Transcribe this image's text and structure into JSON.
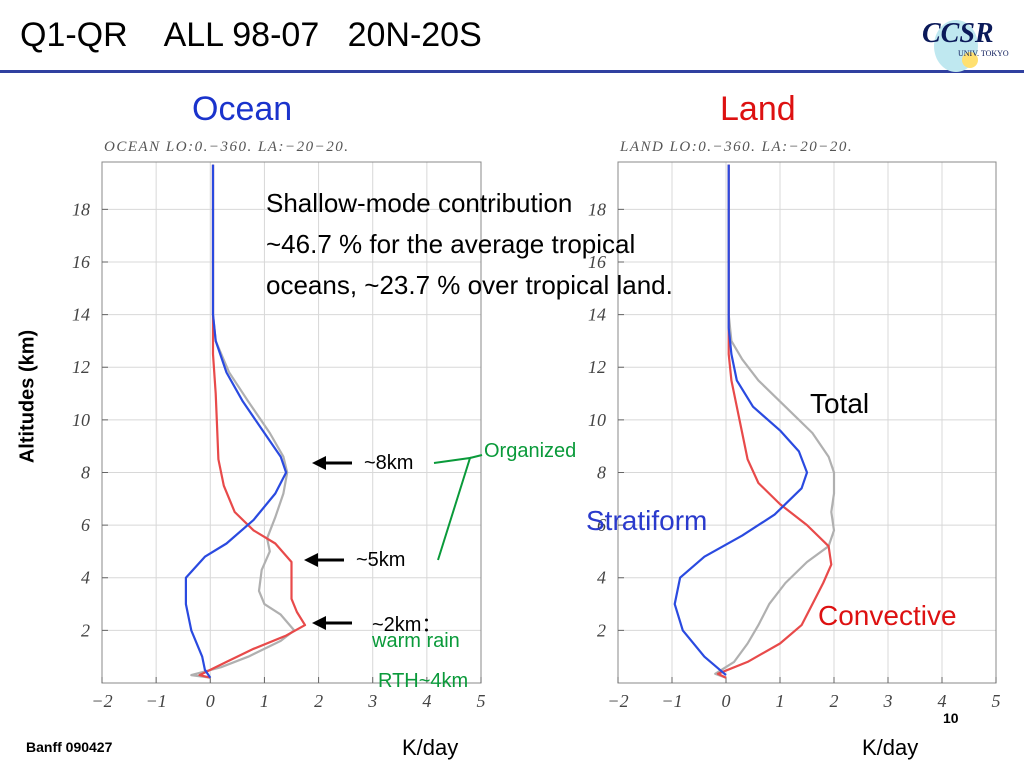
{
  "slide": {
    "title": "Q1-QR    ALL 98-07   20N-20S",
    "footer": "Banff 090427",
    "page_number": "10",
    "logo_text": "CCSR",
    "logo_subtext": "UNIV. TOKYO"
  },
  "panels": {
    "ocean_heading": "Ocean",
    "land_heading": "Land",
    "ocean_header_text": "OCEAN  LO:0.−360.  LA:−20−20.",
    "land_header_text": "LAND   LO:0.−360.  LA:−20−20.",
    "ylabel": "Altitudes (km)",
    "xunit": "K/day"
  },
  "annotations": {
    "shallow_line1": "Shallow-mode contribution",
    "shallow_line2": "~46.7 % for the average tropical",
    "shallow_line3": "oceans, ~23.7 % over tropical land.",
    "peak_8km": "~8km",
    "peak_5km": "~5km",
    "peak_2km": "~2km：",
    "warm_rain": "warm rain",
    "rth": "RTH~4km",
    "organized": "Organized",
    "total": "Total",
    "stratiform": "Stratiform",
    "convective": "Convective"
  },
  "colors": {
    "stratiform": "#2a4ae0",
    "convective": "#e84a4a",
    "total": "#b0b0b0",
    "organized": "#0a9a3a",
    "title_rule": "#3040a0"
  },
  "chart_data": [
    {
      "type": "line",
      "panel": "Ocean",
      "xlim": [
        -2,
        5
      ],
      "ylim": [
        0,
        19.8
      ],
      "xticks": [
        -2,
        -1,
        0,
        1,
        2,
        3,
        4,
        5
      ],
      "yticks": [
        2,
        4,
        6,
        8,
        10,
        12,
        14,
        16,
        18
      ],
      "xlabel": "K/day",
      "ylabel": "Altitudes (km)",
      "grid": true,
      "series": [
        {
          "name": "Stratiform",
          "color": "#2a4ae0",
          "points": [
            [
              0.0,
              0.2
            ],
            [
              -0.1,
              0.5
            ],
            [
              -0.15,
              1
            ],
            [
              -0.35,
              2
            ],
            [
              -0.45,
              3
            ],
            [
              -0.45,
              4
            ],
            [
              -0.1,
              4.8
            ],
            [
              0.3,
              5.3
            ],
            [
              0.8,
              6.2
            ],
            [
              1.2,
              7.2
            ],
            [
              1.4,
              8
            ],
            [
              1.3,
              8.6
            ],
            [
              1.0,
              9.5
            ],
            [
              0.6,
              10.7
            ],
            [
              0.3,
              11.8
            ],
            [
              0.1,
              13
            ],
            [
              0.05,
              14
            ],
            [
              0.05,
              15
            ],
            [
              0.05,
              16
            ],
            [
              0.05,
              17
            ],
            [
              0.05,
              18
            ],
            [
              0.05,
              19.7
            ]
          ]
        },
        {
          "name": "Convective",
          "color": "#e84a4a",
          "points": [
            [
              0.0,
              0.2
            ],
            [
              -0.2,
              0.3
            ],
            [
              0.3,
              0.8
            ],
            [
              0.8,
              1.3
            ],
            [
              1.4,
              1.8
            ],
            [
              1.75,
              2.2
            ],
            [
              1.6,
              2.7
            ],
            [
              1.5,
              3.2
            ],
            [
              1.5,
              4.0
            ],
            [
              1.5,
              4.6
            ],
            [
              1.2,
              5.3
            ],
            [
              0.8,
              5.8
            ],
            [
              0.45,
              6.5
            ],
            [
              0.25,
              7.5
            ],
            [
              0.15,
              8.5
            ],
            [
              0.12,
              10
            ],
            [
              0.1,
              11
            ],
            [
              0.05,
              12.5
            ],
            [
              0.05,
              14
            ],
            [
              0.05,
              15
            ],
            [
              0.05,
              16
            ],
            [
              0.05,
              16.5
            ],
            [
              0.05,
              19.7
            ]
          ]
        },
        {
          "name": "Total",
          "color": "#b0b0b0",
          "points": [
            [
              0.0,
              0.2
            ],
            [
              -0.35,
              0.3
            ],
            [
              0.2,
              0.6
            ],
            [
              0.7,
              1.0
            ],
            [
              1.3,
              1.6
            ],
            [
              1.55,
              2.0
            ],
            [
              1.3,
              2.6
            ],
            [
              1.0,
              3.0
            ],
            [
              0.9,
              3.5
            ],
            [
              0.95,
              4.3
            ],
            [
              1.1,
              5.0
            ],
            [
              1.05,
              5.5
            ],
            [
              1.2,
              6.3
            ],
            [
              1.35,
              7.2
            ],
            [
              1.42,
              8
            ],
            [
              1.35,
              8.6
            ],
            [
              1.1,
              9.5
            ],
            [
              0.7,
              10.7
            ],
            [
              0.35,
              11.8
            ],
            [
              0.1,
              13
            ],
            [
              0.05,
              14
            ],
            [
              0.05,
              15
            ],
            [
              0.05,
              16
            ],
            [
              0.05,
              17
            ],
            [
              0.05,
              18
            ],
            [
              0.05,
              19.7
            ]
          ]
        }
      ]
    },
    {
      "type": "line",
      "panel": "Land",
      "xlim": [
        -2,
        5
      ],
      "ylim": [
        0,
        19.8
      ],
      "xticks": [
        -2,
        -1,
        0,
        1,
        2,
        3,
        4,
        5
      ],
      "yticks": [
        2,
        4,
        6,
        8,
        10,
        12,
        14,
        16,
        18
      ],
      "xlabel": "K/day",
      "ylabel": "Altitudes (km)",
      "grid": true,
      "series": [
        {
          "name": "Stratiform",
          "color": "#2a4ae0",
          "points": [
            [
              0.0,
              0.3
            ],
            [
              -0.4,
              1.0
            ],
            [
              -0.8,
              2.0
            ],
            [
              -0.95,
              3.0
            ],
            [
              -0.85,
              4.0
            ],
            [
              -0.4,
              4.8
            ],
            [
              0.3,
              5.6
            ],
            [
              0.9,
              6.4
            ],
            [
              1.4,
              7.4
            ],
            [
              1.5,
              8
            ],
            [
              1.35,
              8.8
            ],
            [
              1.0,
              9.6
            ],
            [
              0.5,
              10.5
            ],
            [
              0.2,
              11.5
            ],
            [
              0.1,
              12.5
            ],
            [
              0.05,
              13.5
            ],
            [
              0.05,
              15
            ],
            [
              0.05,
              16
            ],
            [
              0.05,
              18
            ],
            [
              0.05,
              19.7
            ]
          ]
        },
        {
          "name": "Convective",
          "color": "#e84a4a",
          "points": [
            [
              0.0,
              0.2
            ],
            [
              -0.15,
              0.35
            ],
            [
              0.4,
              0.8
            ],
            [
              1.0,
              1.5
            ],
            [
              1.4,
              2.2
            ],
            [
              1.6,
              3.0
            ],
            [
              1.8,
              3.8
            ],
            [
              1.95,
              4.5
            ],
            [
              1.9,
              5.2
            ],
            [
              1.5,
              6.0
            ],
            [
              1.0,
              6.8
            ],
            [
              0.6,
              7.6
            ],
            [
              0.4,
              8.5
            ],
            [
              0.3,
              9.5
            ],
            [
              0.2,
              10.5
            ],
            [
              0.1,
              11.5
            ],
            [
              0.05,
              12.5
            ],
            [
              0.05,
              14
            ],
            [
              0.05,
              15
            ],
            [
              0.05,
              16
            ],
            [
              0.05,
              19.7
            ]
          ]
        },
        {
          "name": "Total",
          "color": "#b0b0b0",
          "points": [
            [
              0.0,
              0.2
            ],
            [
              -0.2,
              0.35
            ],
            [
              0.15,
              0.8
            ],
            [
              0.4,
              1.5
            ],
            [
              0.6,
              2.2
            ],
            [
              0.8,
              3.0
            ],
            [
              1.1,
              3.8
            ],
            [
              1.5,
              4.6
            ],
            [
              1.9,
              5.2
            ],
            [
              2.0,
              5.8
            ],
            [
              1.95,
              6.5
            ],
            [
              2.0,
              7.2
            ],
            [
              2.0,
              8
            ],
            [
              1.9,
              8.6
            ],
            [
              1.6,
              9.5
            ],
            [
              1.1,
              10.5
            ],
            [
              0.6,
              11.5
            ],
            [
              0.3,
              12.3
            ],
            [
              0.1,
              13
            ],
            [
              0.05,
              14
            ],
            [
              0.05,
              15
            ],
            [
              0.05,
              16
            ],
            [
              0.05,
              18
            ],
            [
              0.05,
              19.7
            ]
          ]
        }
      ]
    }
  ]
}
